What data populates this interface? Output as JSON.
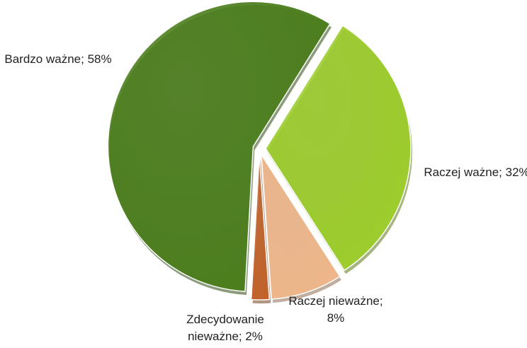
{
  "chart_data": {
    "type": "pie",
    "labels": [
      "Raczej ważne; 32%",
      "Raczej nieważne; 8%",
      "Zdecydowanie nieważne; 2%",
      "Bardzo ważne; 58%"
    ],
    "values": [
      32,
      8,
      2,
      58
    ],
    "colors": [
      "#9ccc2c",
      "#eeb68a",
      "#c0622a",
      "#4b7d1c"
    ]
  }
}
